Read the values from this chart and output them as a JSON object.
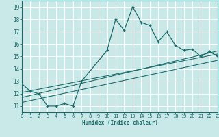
{
  "xlabel": "Humidex (Indice chaleur)",
  "xlim": [
    0,
    23
  ],
  "ylim": [
    10.5,
    19.5
  ],
  "xticks": [
    0,
    1,
    2,
    3,
    4,
    5,
    6,
    7,
    8,
    9,
    10,
    11,
    12,
    13,
    14,
    15,
    16,
    17,
    18,
    19,
    20,
    21,
    22,
    23
  ],
  "yticks": [
    11,
    12,
    13,
    14,
    15,
    16,
    17,
    18,
    19
  ],
  "bg_color": "#c9e8e8",
  "grid_color": "#ffffff",
  "line_color": "#1a6b6b",
  "main_line_x": [
    0,
    1,
    2,
    3,
    4,
    5,
    6,
    7,
    10,
    11,
    12,
    13,
    14,
    15,
    16,
    17,
    18,
    19,
    20,
    21,
    22,
    23
  ],
  "main_line_y": [
    12.8,
    12.2,
    12.0,
    11.0,
    11.0,
    11.2,
    11.0,
    13.0,
    15.5,
    18.0,
    17.1,
    19.0,
    17.75,
    17.5,
    16.2,
    17.0,
    15.9,
    15.5,
    15.6,
    15.0,
    15.4,
    15.0
  ],
  "trend1_x": [
    0,
    23
  ],
  "trend1_y": [
    12.1,
    15.2
  ],
  "trend2_x": [
    0,
    23
  ],
  "trend2_y": [
    11.7,
    15.45
  ],
  "trend3_x": [
    0,
    23
  ],
  "trend3_y": [
    11.3,
    14.7
  ]
}
